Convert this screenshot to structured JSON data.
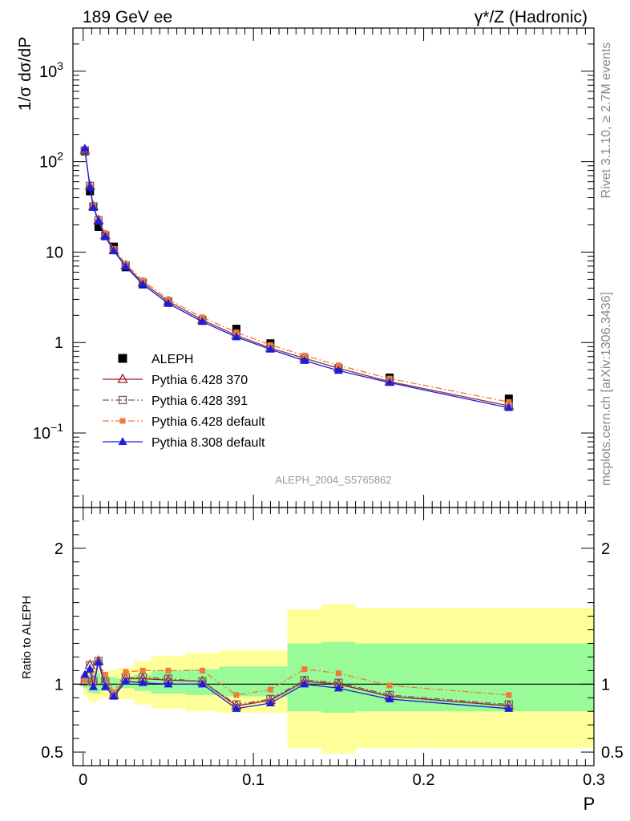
{
  "header": {
    "left": "189 GeV ee",
    "right": "γ*/Z (Hadronic)"
  },
  "side_labels": {
    "rivet": "Rivet 3.1.10, ≥ 2.7M events",
    "source": "mcplots.cern.ch [arXiv:1306.3436]"
  },
  "watermark": "ALEPH_2004_S5765862",
  "colors": {
    "data": "#000000",
    "p370": "#9b1c2c",
    "p391": "#7a5a64",
    "p6def": "#f07a3c",
    "p8": "#1d1de0",
    "band_inner": "#98fb98",
    "band_outer": "#ffff99"
  },
  "chart_data": [
    {
      "type": "scatter",
      "panel": "main",
      "ylabel": "1/σ dσ/dP",
      "yscale": "log",
      "ylim": [
        0.015,
        3000
      ],
      "xlim": [
        -0.006,
        0.3
      ],
      "y_tick_labels": [
        "10^-1",
        "1",
        "10",
        "10^2",
        "10^3"
      ],
      "legend_position": "lower-left",
      "x": [
        0.001,
        0.004,
        0.006,
        0.009,
        0.013,
        0.018,
        0.025,
        0.035,
        0.05,
        0.07,
        0.09,
        0.11,
        0.13,
        0.15,
        0.18,
        0.25
      ],
      "series": [
        {
          "name": "ALEPH",
          "key": "data",
          "marker": "square",
          "values": [
            130,
            47,
            32,
            19,
            15,
            11.5,
            6.8,
            4.4,
            2.75,
            1.75,
            1.42,
            0.98,
            0.66,
            0.52,
            0.41,
            0.24
          ]
        },
        {
          "name": "Pythia 6.428 370",
          "key": "p370",
          "marker": "triangle-open",
          "line": "solid",
          "values": [
            133,
            54,
            32,
            22.5,
            15.3,
            10.5,
            7.1,
            4.6,
            2.85,
            1.78,
            1.2,
            0.87,
            0.67,
            0.52,
            0.37,
            0.2
          ]
        },
        {
          "name": "Pythia 6.428 391",
          "key": "p391",
          "marker": "square-open",
          "line": "dashdot",
          "values": [
            133,
            54,
            32,
            22.5,
            15.3,
            10.5,
            7.1,
            4.6,
            2.85,
            1.78,
            1.2,
            0.87,
            0.67,
            0.52,
            0.37,
            0.2
          ]
        },
        {
          "name": "Pythia 6.428 default",
          "key": "p6def",
          "marker": "square-filled",
          "line": "dashdot",
          "values": [
            135,
            52,
            33,
            22,
            16.2,
            10.8,
            7.4,
            4.85,
            3.0,
            1.9,
            1.3,
            0.94,
            0.72,
            0.56,
            0.4,
            0.22
          ]
        },
        {
          "name": "Pythia 8.308 default",
          "key": "p8",
          "marker": "triangle-filled",
          "line": "solid",
          "values": [
            140,
            52,
            31,
            22,
            14.8,
            10.3,
            6.9,
            4.4,
            2.7,
            1.7,
            1.15,
            0.84,
            0.63,
            0.49,
            0.36,
            0.19
          ]
        }
      ]
    },
    {
      "type": "line",
      "panel": "ratio",
      "ylabel": "Ratio to ALEPH",
      "xlabel": "P",
      "ylim": [
        0.4,
        2.3
      ],
      "xlim": [
        -0.006,
        0.3
      ],
      "y_tick_labels": [
        "0.5",
        "1",
        "2"
      ],
      "x_tick_labels": [
        "0",
        "0.1",
        "0.2",
        "0.3"
      ],
      "x_ticks": [
        0,
        0.1,
        0.2,
        0.3
      ],
      "band_edges": [
        0.0,
        0.0025,
        0.005,
        0.0075,
        0.01,
        0.015,
        0.02,
        0.03,
        0.04,
        0.06,
        0.08,
        0.1,
        0.12,
        0.14,
        0.16,
        0.2,
        0.3
      ],
      "band_inner_low": [
        0.97,
        0.94,
        0.93,
        0.93,
        0.95,
        0.96,
        0.97,
        0.95,
        0.93,
        0.92,
        0.91,
        0.91,
        0.8,
        0.79,
        0.8,
        0.8
      ],
      "band_inner_high": [
        1.04,
        1.07,
        1.08,
        1.08,
        1.06,
        1.05,
        1.04,
        1.07,
        1.1,
        1.11,
        1.13,
        1.13,
        1.3,
        1.31,
        1.3,
        1.3
      ],
      "band_outer_low": [
        0.92,
        0.88,
        0.86,
        0.88,
        0.9,
        0.9,
        0.89,
        0.85,
        0.82,
        0.8,
        0.79,
        0.79,
        0.53,
        0.49,
        0.53,
        0.53
      ],
      "band_outer_high": [
        1.08,
        1.12,
        1.14,
        1.12,
        1.1,
        1.1,
        1.12,
        1.17,
        1.21,
        1.23,
        1.25,
        1.25,
        1.55,
        1.59,
        1.56,
        1.56
      ],
      "x": [
        0.001,
        0.004,
        0.006,
        0.009,
        0.013,
        0.018,
        0.025,
        0.035,
        0.05,
        0.07,
        0.09,
        0.11,
        0.13,
        0.15,
        0.18,
        0.25
      ],
      "series": [
        {
          "name": "Pythia 6.428 370",
          "key": "p370",
          "marker": "triangle-open",
          "line": "solid",
          "values": [
            1.02,
            1.14,
            1.02,
            1.17,
            1.02,
            0.92,
            1.04,
            1.04,
            1.03,
            1.02,
            0.84,
            0.88,
            1.02,
            1.0,
            0.91,
            0.84
          ]
        },
        {
          "name": "Pythia 6.428 391",
          "key": "p391",
          "marker": "square-open",
          "line": "dashdot",
          "values": [
            1.02,
            1.14,
            1.02,
            1.17,
            1.02,
            0.92,
            1.05,
            1.05,
            1.04,
            1.02,
            0.85,
            0.89,
            1.03,
            1.01,
            0.92,
            0.85
          ]
        },
        {
          "name": "Pythia 6.428 default",
          "key": "p6def",
          "marker": "square-filled",
          "line": "dashdot",
          "values": [
            1.03,
            1.1,
            1.03,
            1.16,
            1.07,
            0.94,
            1.09,
            1.1,
            1.1,
            1.1,
            0.92,
            0.96,
            1.11,
            1.08,
            0.99,
            0.92
          ]
        },
        {
          "name": "Pythia 8.308 default",
          "key": "p8",
          "marker": "triangle-filled",
          "line": "solid",
          "values": [
            1.07,
            1.11,
            0.98,
            1.16,
            0.98,
            0.91,
            1.02,
            1.01,
            1.0,
            1.0,
            0.82,
            0.86,
            1.0,
            0.97,
            0.89,
            0.82
          ]
        }
      ]
    }
  ]
}
